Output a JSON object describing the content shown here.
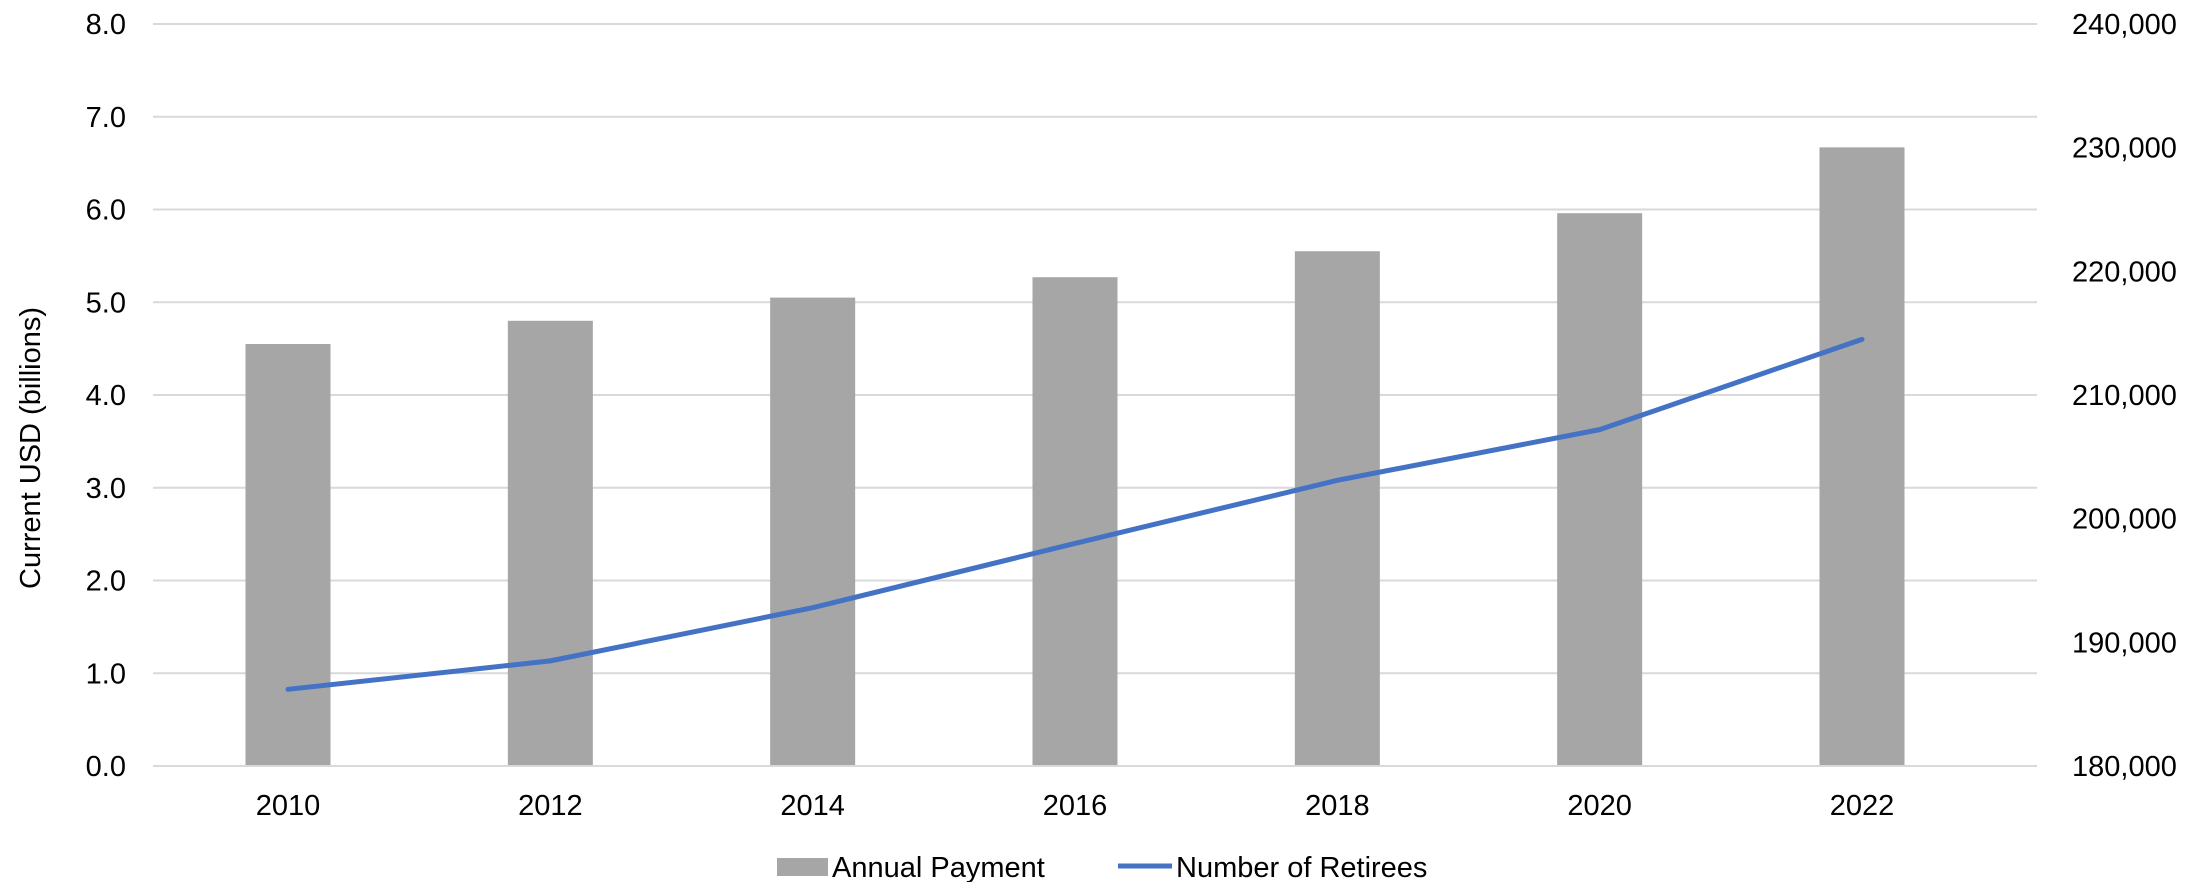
{
  "chart_data": {
    "type": "bar",
    "categories": [
      "2010",
      "2012",
      "2014",
      "2016",
      "2018",
      "2020",
      "2022"
    ],
    "series": [
      {
        "name": "Annual Payment",
        "type": "bar",
        "axis": "left",
        "color": "#a6a6a6",
        "values": [
          4.55,
          4.8,
          5.05,
          5.27,
          5.55,
          5.96,
          6.67
        ]
      },
      {
        "name": "Number of Retirees",
        "type": "line",
        "axis": "right",
        "color": "#4472c4",
        "values": [
          186200,
          188500,
          192800,
          198000,
          203100,
          207200,
          214500
        ]
      }
    ],
    "ylabel": "Current USD (billions)",
    "ylim": [
      0,
      8
    ],
    "yticks": [
      "0.0",
      "1.0",
      "2.0",
      "3.0",
      "4.0",
      "5.0",
      "6.0",
      "7.0",
      "8.0"
    ],
    "y2lim": [
      180000,
      240000
    ],
    "y2ticks": [
      "180,000",
      "190,000",
      "200,000",
      "210,000",
      "220,000",
      "230,000",
      "240,000"
    ],
    "grid": true,
    "legend": "bottom"
  }
}
